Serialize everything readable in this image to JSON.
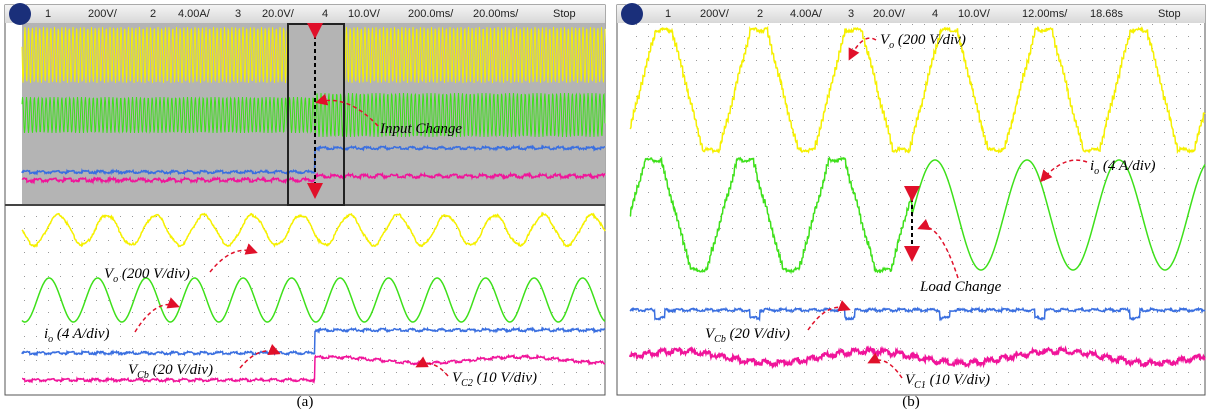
{
  "panels": [
    {
      "header": [
        "1",
        "200V/",
        "2",
        "4.00A/",
        "3",
        "20.0V/",
        "4",
        "10.0V/",
        "200.0ms/",
        "20.00ms/",
        "Stop"
      ],
      "annotations": [
        {
          "symbol": "Input Change"
        },
        {
          "symbol": "V",
          "sub": "o",
          "scale": "(200 V/div)"
        },
        {
          "symbol": "i",
          "sub": "o",
          "scale": "(4 A/div)"
        },
        {
          "symbol": "V",
          "sub": "Cb",
          "scale": "(20 V/div)"
        },
        {
          "symbol": "V",
          "sub": "C2",
          "scale": "(10 V/div)"
        }
      ],
      "caption": "(a)"
    },
    {
      "header": [
        "1",
        "200V/",
        "2",
        "4.00A/",
        "3",
        "20.0V/",
        "4",
        "10.0V/",
        "12.00ms/",
        "18.68s",
        "Stop"
      ],
      "annotations": [
        {
          "symbol": "V",
          "sub": "o",
          "scale": "(200 V/div)"
        },
        {
          "symbol": "i",
          "sub": "o",
          "scale": "(4 A/div)"
        },
        {
          "symbol": "Load Change"
        },
        {
          "symbol": "V",
          "sub": "Cb",
          "scale": "(20 V/div)"
        },
        {
          "symbol": "V",
          "sub": "C1",
          "scale": "(10 V/div)"
        }
      ],
      "caption": "(b)"
    }
  ]
}
